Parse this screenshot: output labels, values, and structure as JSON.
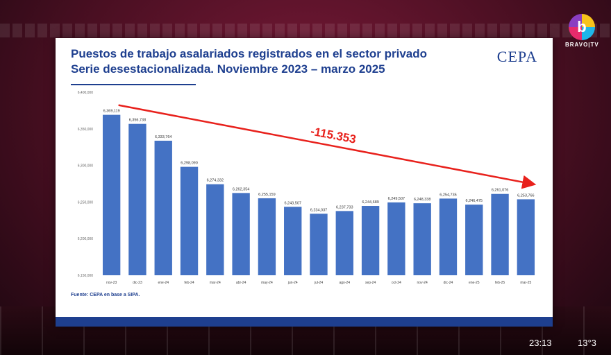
{
  "broadcast": {
    "channel_letter": "b",
    "channel_name": "BRAVO|TV",
    "time": "23:13",
    "temperature": "13°3"
  },
  "slide": {
    "title_line1": "Puestos de trabajo asalariados registrados en el sector privado",
    "title_line2": "Serie desestacionalizada. Noviembre 2023 – marzo 2025",
    "logo": "CEPA",
    "source": "Fuente: CEPA en base a SIPA."
  },
  "chart_data": {
    "type": "bar",
    "bar_color": "#4472c4",
    "annotation_color": "#e8211c",
    "annotation": "-115.353",
    "ylim": [
      6150000,
      6400000
    ],
    "yticks": [
      "6,400,000",
      "6,350,000",
      "6,300,000",
      "6,250,000",
      "6,200,000",
      "6,150,000"
    ],
    "ytick_values": [
      6400000,
      6350000,
      6300000,
      6250000,
      6200000,
      6150000
    ],
    "categories": [
      "nov-23",
      "dic-23",
      "ene-24",
      "feb-24",
      "mar-24",
      "abr-24",
      "may-24",
      "jun-24",
      "jul-24",
      "ago-24",
      "sep-24",
      "oct-24",
      "nov-24",
      "dic-24",
      "ene-25",
      "feb-25",
      "mar-25"
    ],
    "values": [
      6369119,
      6356738,
      6333764,
      6298090,
      6274332,
      6262354,
      6255159,
      6243507,
      6234037,
      6237733,
      6244689,
      6249507,
      6248338,
      6254735,
      6246475,
      6261076,
      6253766
    ],
    "value_labels": [
      "6,369,119",
      "6,356,738",
      "6,333,764",
      "6,298,090",
      "6,274,332",
      "6,262,354",
      "6,255,159",
      "6,243,507",
      "6,234,037",
      "6,237,733",
      "6,244,689",
      "6,249,507",
      "6,248,338",
      "6,254,735",
      "6,246,475",
      "6,261,076",
      "6,253,766"
    ]
  }
}
